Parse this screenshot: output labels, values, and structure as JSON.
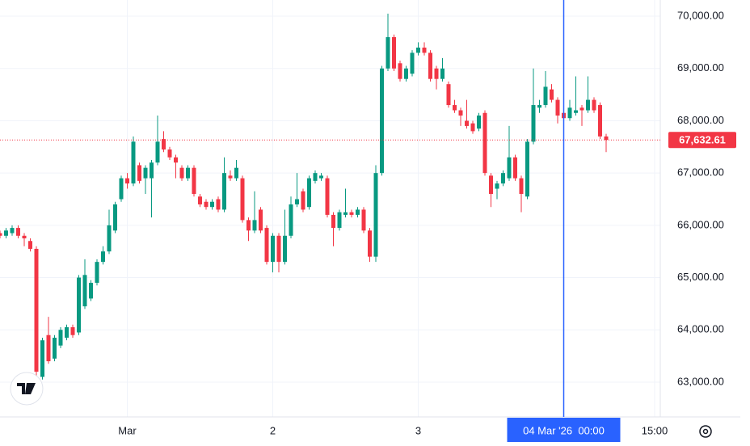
{
  "chart_data": {
    "type": "candlestick",
    "up_color": "#089981",
    "down_color": "#f23645",
    "grid": true,
    "ylim": [
      62350,
      70310
    ],
    "yticks": [
      {
        "value": 63000,
        "label": "63,000.00"
      },
      {
        "value": 64000,
        "label": "64,000.00"
      },
      {
        "value": 65000,
        "label": "65,000.00"
      },
      {
        "value": 66000,
        "label": "66,000.00"
      },
      {
        "value": 67000,
        "label": "67,000.00"
      },
      {
        "value": 68000,
        "label": "68,000.00"
      },
      {
        "value": 69000,
        "label": "69,000.00"
      },
      {
        "value": 70000,
        "label": "70,000.00"
      }
    ],
    "xlim": [
      0,
      108
    ],
    "xticks": [
      {
        "value": 21,
        "label": "Mar"
      },
      {
        "value": 45,
        "label": "2"
      },
      {
        "value": 69,
        "label": "3"
      },
      {
        "value": 108,
        "label": "15:00"
      }
    ],
    "crosshair": {
      "value": 93,
      "label": "04 Mar '26  00:00",
      "color": "#2962ff"
    },
    "last_price": {
      "value": 67632.61,
      "label": "67,632.61"
    },
    "open": [
      65850,
      65800,
      65850,
      65950,
      65800,
      65700,
      65550,
      63100,
      63900,
      63450,
      63700,
      63850,
      64050,
      63950,
      64450,
      64600,
      64900,
      65300,
      65500,
      65900,
      66500,
      66900,
      66800,
      67150,
      66900,
      66900,
      67200,
      67650,
      67450,
      67300,
      67100,
      66900,
      67100,
      66550,
      66450,
      66350,
      66500,
      66300,
      66950,
      66900,
      66900,
      66100,
      65900,
      66300,
      65950,
      65300,
      65800,
      65300,
      65800,
      66400,
      66650,
      66350,
      66850,
      66900,
      66900,
      66200,
      65950,
      66200,
      66250,
      66200,
      66300,
      65900,
      65400,
      67000,
      69000,
      69600,
      69100,
      68800,
      68900,
      69300,
      69400,
      69300,
      69000,
      68800,
      68700,
      68300,
      68200,
      68000,
      67950,
      67850,
      68150,
      66950,
      66700,
      66800,
      66900,
      67300,
      66900,
      66550,
      67600,
      68250,
      68300,
      68600,
      68400,
      68150,
      68050,
      68150,
      68250,
      68200,
      68400,
      68300,
      67700
    ],
    "high": [
      65900,
      65950,
      66000,
      66000,
      65850,
      65750,
      65600,
      63850,
      64250,
      63900,
      64050,
      64100,
      64100,
      65050,
      65350,
      64950,
      65350,
      65600,
      66300,
      66450,
      66950,
      67000,
      67700,
      67200,
      67150,
      67250,
      68100,
      67800,
      67500,
      67350,
      67150,
      67150,
      67150,
      66600,
      66500,
      66500,
      66550,
      67300,
      67050,
      67250,
      66950,
      66150,
      66650,
      66350,
      66000,
      65850,
      65850,
      66300,
      66550,
      67000,
      66700,
      66950,
      67050,
      67000,
      66950,
      66250,
      66300,
      66700,
      66300,
      66350,
      66350,
      65950,
      67150,
      69050,
      70050,
      69650,
      69150,
      69050,
      69350,
      69500,
      69500,
      69350,
      69050,
      69200,
      68750,
      68400,
      68250,
      68400,
      68000,
      68150,
      68200,
      67000,
      66850,
      67050,
      67900,
      67350,
      66950,
      67650,
      69000,
      68400,
      68950,
      68700,
      68450,
      68200,
      68400,
      68850,
      68300,
      68850,
      68450,
      68350,
      67750
    ],
    "low": [
      65750,
      65750,
      65800,
      65750,
      65600,
      65500,
      63100,
      63050,
      63350,
      63400,
      63650,
      63800,
      63850,
      63900,
      64400,
      64550,
      64850,
      65250,
      65450,
      65850,
      66450,
      66700,
      66750,
      66800,
      66600,
      66150,
      67150,
      67400,
      67250,
      66900,
      66850,
      66850,
      66550,
      66350,
      66300,
      66300,
      66250,
      66250,
      66850,
      66850,
      66050,
      65700,
      65850,
      65850,
      65250,
      65100,
      65100,
      65250,
      65750,
      66350,
      66250,
      66300,
      66800,
      66850,
      66150,
      65600,
      65900,
      66150,
      66150,
      66150,
      65850,
      65300,
      65300,
      66950,
      68950,
      68950,
      68750,
      68750,
      68850,
      69250,
      69250,
      68750,
      68600,
      68750,
      68250,
      68150,
      67900,
      67850,
      67750,
      67800,
      66950,
      66350,
      66500,
      66750,
      66850,
      66850,
      66250,
      66500,
      67550,
      68150,
      68250,
      68350,
      67950,
      67950,
      68000,
      68100,
      67900,
      68150,
      68150,
      67650,
      67400
    ],
    "close": [
      65800,
      65900,
      65950,
      65800,
      65750,
      65550,
      63200,
      63800,
      63400,
      63850,
      64000,
      64050,
      63900,
      65000,
      65050,
      64900,
      65300,
      65500,
      66000,
      66400,
      66900,
      66800,
      67600,
      66850,
      67100,
      67200,
      67600,
      67450,
      67300,
      67200,
      66900,
      67100,
      66600,
      66400,
      66350,
      66450,
      66300,
      67000,
      66900,
      67100,
      66100,
      65900,
      66100,
      65900,
      65300,
      65800,
      65300,
      65800,
      66400,
      66500,
      66300,
      66900,
      67000,
      66950,
      66200,
      65950,
      66250,
      66250,
      66200,
      66300,
      65900,
      65400,
      67000,
      69000,
      69600,
      69000,
      68800,
      69000,
      69300,
      69400,
      69300,
      68800,
      68800,
      69000,
      68300,
      68200,
      68100,
      67900,
      67800,
      68100,
      67000,
      66600,
      66800,
      67000,
      67300,
      66900,
      66600,
      67600,
      68300,
      68300,
      68650,
      68400,
      68100,
      68050,
      68250,
      68200,
      68200,
      68400,
      68200,
      67700,
      67632.61
    ]
  }
}
